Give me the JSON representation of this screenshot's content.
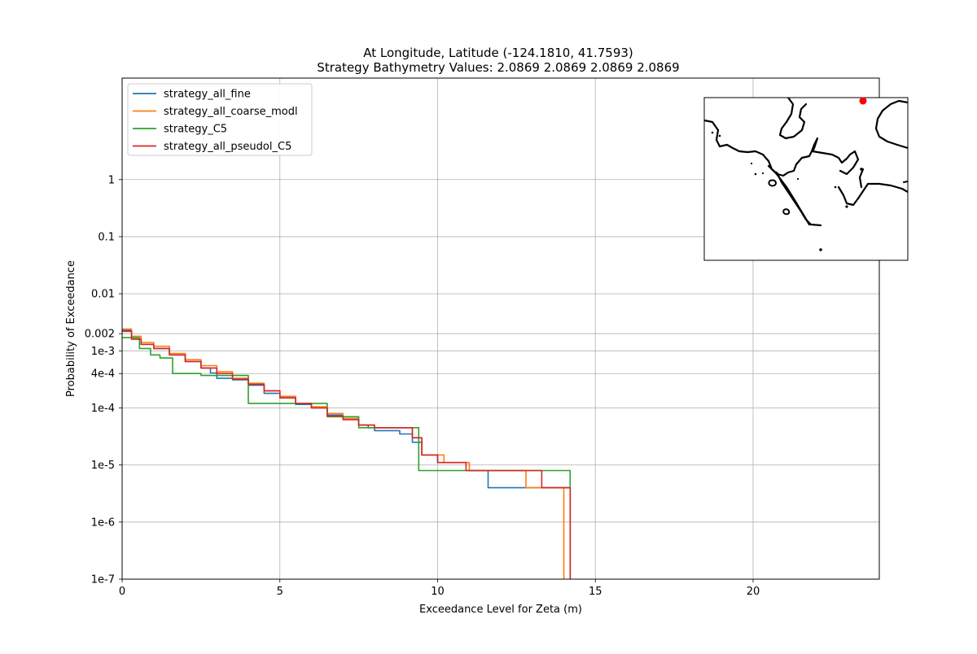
{
  "chart_data": {
    "type": "line",
    "title_line1": "At Longitude, Latitude (-124.1810,  41.7593)",
    "title_line2": "Strategy Bathymetry Values:    2.0869    2.0869    2.0869    2.0869",
    "xlabel": "Exceedance Level for Zeta (m)",
    "ylabel": "Probability of Exceedance",
    "x_scale": "linear",
    "y_scale": "log",
    "xlim": [
      0,
      24
    ],
    "ylim": [
      1e-07,
      60
    ],
    "grid": true,
    "legend_position": "upper-left",
    "x_ticks": [
      {
        "value": 0,
        "label": "0"
      },
      {
        "value": 5,
        "label": "5"
      },
      {
        "value": 10,
        "label": "10"
      },
      {
        "value": 15,
        "label": "15"
      },
      {
        "value": 20,
        "label": "20"
      }
    ],
    "y_ticks": [
      {
        "value": 1,
        "label": "1"
      },
      {
        "value": 0.1,
        "label": "0.1"
      },
      {
        "value": 0.01,
        "label": "0.01"
      },
      {
        "value": 0.002,
        "label": "0.002"
      },
      {
        "value": 0.001,
        "label": "1e-3"
      },
      {
        "value": 0.0004,
        "label": "4e-4"
      },
      {
        "value": 0.0001,
        "label": "1e-4"
      },
      {
        "value": 1e-05,
        "label": "1e-5"
      },
      {
        "value": 1e-06,
        "label": "1e-6"
      },
      {
        "value": 1e-07,
        "label": "1e-7"
      }
    ],
    "series": [
      {
        "name": "strategy_all_fine",
        "color": "#1f77b4",
        "points": [
          [
            0,
            0.0023
          ],
          [
            0.3,
            0.0016
          ],
          [
            0.6,
            0.0013
          ],
          [
            1.0,
            0.0011
          ],
          [
            1.5,
            0.00085
          ],
          [
            2.0,
            0.00065
          ],
          [
            2.5,
            0.0005
          ],
          [
            2.8,
            0.00041
          ],
          [
            3.0,
            0.00033
          ],
          [
            3.5,
            0.00031
          ],
          [
            4.0,
            0.00025
          ],
          [
            4.5,
            0.00018
          ],
          [
            5.0,
            0.00015
          ],
          [
            5.5,
            0.000115
          ],
          [
            6.0,
            0.0001
          ],
          [
            6.5,
            7.5e-05
          ],
          [
            7.0,
            6.5e-05
          ],
          [
            7.5,
            5e-05
          ],
          [
            7.8,
            4.5e-05
          ],
          [
            8.0,
            4e-05
          ],
          [
            8.8,
            3.5e-05
          ],
          [
            9.2,
            2.5e-05
          ],
          [
            9.5,
            1.5e-05
          ],
          [
            10.0,
            1.1e-05
          ],
          [
            10.5,
            1.1e-05
          ],
          [
            11.0,
            8e-06
          ],
          [
            11.6,
            8e-06
          ],
          [
            11.6,
            4e-06
          ],
          [
            14.2,
            4e-06
          ],
          [
            14.2,
            1e-07
          ]
        ]
      },
      {
        "name": "strategy_all_coarse_modl",
        "color": "#ff7f0e",
        "points": [
          [
            0,
            0.0024
          ],
          [
            0.3,
            0.0018
          ],
          [
            0.6,
            0.0014
          ],
          [
            1.0,
            0.0012
          ],
          [
            1.5,
            0.0009
          ],
          [
            2.0,
            0.0007
          ],
          [
            2.5,
            0.00055
          ],
          [
            3.0,
            0.00043
          ],
          [
            3.5,
            0.00033
          ],
          [
            4.0,
            0.00027
          ],
          [
            4.5,
            0.0002
          ],
          [
            5.0,
            0.00016
          ],
          [
            5.5,
            0.00012
          ],
          [
            6.0,
            0.000105
          ],
          [
            6.5,
            8e-05
          ],
          [
            7.0,
            6.5e-05
          ],
          [
            7.5,
            5e-05
          ],
          [
            8.0,
            4.5e-05
          ],
          [
            8.8,
            4.5e-05
          ],
          [
            9.2,
            3e-05
          ],
          [
            9.5,
            1.5e-05
          ],
          [
            10.2,
            1.5e-05
          ],
          [
            10.2,
            1.1e-05
          ],
          [
            11.0,
            1.1e-05
          ],
          [
            11.0,
            8e-06
          ],
          [
            12.5,
            8e-06
          ],
          [
            12.8,
            4e-06
          ],
          [
            14.0,
            4e-06
          ],
          [
            14.0,
            1e-07
          ]
        ]
      },
      {
        "name": "strategy_C5",
        "color": "#2ca02c",
        "points": [
          [
            0,
            0.0017
          ],
          [
            0.55,
            0.0017
          ],
          [
            0.55,
            0.0011
          ],
          [
            0.9,
            0.0011
          ],
          [
            0.9,
            0.00085
          ],
          [
            1.2,
            0.00085
          ],
          [
            1.2,
            0.00075
          ],
          [
            1.6,
            0.00075
          ],
          [
            1.6,
            0.0004
          ],
          [
            2.5,
            0.0004
          ],
          [
            2.5,
            0.00037
          ],
          [
            4.0,
            0.00037
          ],
          [
            4.0,
            0.00012
          ],
          [
            6.5,
            0.00012
          ],
          [
            6.5,
            7e-05
          ],
          [
            7.5,
            7e-05
          ],
          [
            7.5,
            4.5e-05
          ],
          [
            9.4,
            4.5e-05
          ],
          [
            9.4,
            8e-06
          ],
          [
            14.2,
            8e-06
          ],
          [
            14.2,
            1e-07
          ]
        ]
      },
      {
        "name": "strategy_all_pseudol_C5",
        "color": "#d62728",
        "points": [
          [
            0,
            0.0022
          ],
          [
            0.3,
            0.0016
          ],
          [
            0.6,
            0.0013
          ],
          [
            1.0,
            0.0011
          ],
          [
            1.5,
            0.00085
          ],
          [
            2.0,
            0.00065
          ],
          [
            2.5,
            0.0005
          ],
          [
            3.0,
            0.0004
          ],
          [
            3.5,
            0.00032
          ],
          [
            4.0,
            0.00026
          ],
          [
            4.5,
            0.0002
          ],
          [
            5.0,
            0.00015
          ],
          [
            5.5,
            0.00012
          ],
          [
            6.0,
            0.0001
          ],
          [
            6.5,
            7.2e-05
          ],
          [
            7.0,
            6.2e-05
          ],
          [
            7.5,
            5e-05
          ],
          [
            8.0,
            4.5e-05
          ],
          [
            8.8,
            4.5e-05
          ],
          [
            9.2,
            3e-05
          ],
          [
            9.5,
            1.5e-05
          ],
          [
            10.0,
            1.5e-05
          ],
          [
            10.0,
            1.1e-05
          ],
          [
            10.9,
            1.1e-05
          ],
          [
            10.9,
            8e-06
          ],
          [
            13.0,
            8e-06
          ],
          [
            13.3,
            4e-06
          ],
          [
            14.2,
            4e-06
          ],
          [
            14.2,
            1e-07
          ]
        ]
      }
    ]
  },
  "inset_map": {
    "coastline_color": "#000000",
    "marker_color": "#ff0000"
  }
}
